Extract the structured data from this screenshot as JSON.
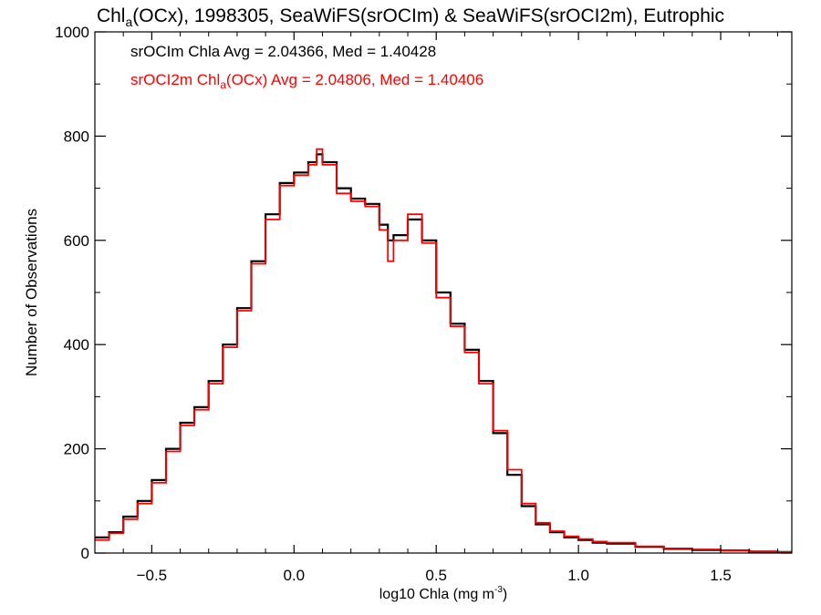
{
  "chart_data": {
    "type": "line",
    "step": true,
    "title": {
      "prefix": "Chl",
      "sub": "a",
      "suffix": "(OCx), 1998305, SeaWiFS(srOCIm) & SeaWiFS(srOCI2m), Eutrophic"
    },
    "xlabel": {
      "text": "log10 Chla (mg m",
      "sup": "-3",
      "close": ")"
    },
    "ylabel": "Number of Observations",
    "xlim": [
      -0.7,
      1.75
    ],
    "ylim": [
      0,
      1000
    ],
    "xticks": [
      -0.5,
      0.0,
      0.5,
      1.0,
      1.5
    ],
    "xtick_labels": [
      "−0.5",
      "0.0",
      "0.5",
      "1.0",
      "1.5"
    ],
    "yticks": [
      0,
      200,
      400,
      600,
      800,
      1000
    ],
    "ytick_labels": [
      "0",
      "200",
      "400",
      "600",
      "800",
      "1000"
    ],
    "grid": false,
    "legend_placement": "top-left",
    "annotations": [
      {
        "color": "#000000",
        "parts": [
          {
            "t": "srOCIm Chla Avg = 2.04366, Med = 1.40428"
          }
        ]
      },
      {
        "color": "#ff0000",
        "parts": [
          {
            "t": "srOCI2m Chl"
          },
          {
            "t": "a",
            "sub": true
          },
          {
            "t": "(OCx) Avg = 2.04806, Med = 1.40406"
          }
        ]
      }
    ],
    "series": [
      {
        "name": "srOCIm",
        "color": "#000000",
        "x": [
          -0.7,
          -0.65,
          -0.6,
          -0.55,
          -0.5,
          -0.45,
          -0.4,
          -0.35,
          -0.3,
          -0.25,
          -0.2,
          -0.15,
          -0.1,
          -0.05,
          0.0,
          0.05,
          0.08,
          0.1,
          0.15,
          0.2,
          0.25,
          0.3,
          0.33,
          0.35,
          0.4,
          0.45,
          0.5,
          0.55,
          0.6,
          0.65,
          0.7,
          0.75,
          0.8,
          0.85,
          0.9,
          0.95,
          1.0,
          1.05,
          1.1,
          1.2,
          1.3,
          1.4,
          1.5,
          1.6,
          1.7,
          1.75
        ],
        "y": [
          30,
          40,
          70,
          100,
          140,
          200,
          250,
          280,
          330,
          400,
          470,
          560,
          650,
          710,
          730,
          750,
          765,
          750,
          700,
          680,
          670,
          630,
          600,
          610,
          640,
          600,
          500,
          440,
          390,
          330,
          230,
          150,
          90,
          55,
          40,
          30,
          25,
          20,
          18,
          12,
          8,
          6,
          5,
          3,
          2,
          1
        ]
      },
      {
        "name": "srOCI2m",
        "color": "#ff0000",
        "x": [
          -0.7,
          -0.65,
          -0.6,
          -0.55,
          -0.5,
          -0.45,
          -0.4,
          -0.35,
          -0.3,
          -0.25,
          -0.2,
          -0.15,
          -0.1,
          -0.05,
          0.0,
          0.05,
          0.08,
          0.1,
          0.15,
          0.2,
          0.25,
          0.3,
          0.33,
          0.35,
          0.4,
          0.45,
          0.5,
          0.55,
          0.6,
          0.65,
          0.7,
          0.75,
          0.8,
          0.85,
          0.9,
          0.95,
          1.0,
          1.05,
          1.1,
          1.2,
          1.3,
          1.4,
          1.5,
          1.6,
          1.7,
          1.75
        ],
        "y": [
          25,
          38,
          65,
          95,
          135,
          195,
          245,
          275,
          325,
          395,
          465,
          555,
          640,
          705,
          725,
          745,
          775,
          745,
          690,
          675,
          665,
          620,
          560,
          600,
          650,
          595,
          490,
          435,
          385,
          325,
          235,
          160,
          95,
          58,
          42,
          32,
          27,
          22,
          20,
          13,
          9,
          7,
          5,
          3,
          2,
          1
        ]
      }
    ]
  }
}
